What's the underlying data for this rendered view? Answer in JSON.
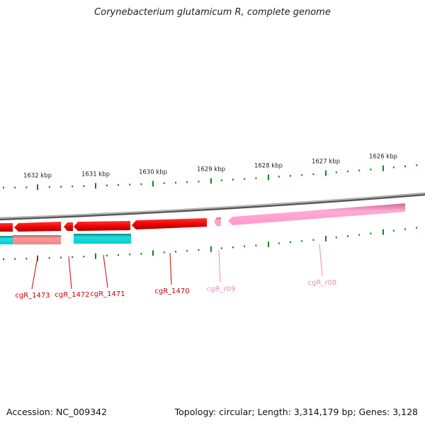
{
  "title": "Corynebacterium glutamicum R, complete genome",
  "footer": {
    "accession": "Accession: NC_009342",
    "summary": "Topology: circular; Length: 3,314,179 bp; Genes: 3,128"
  },
  "ruler": {
    "labels": [
      "1632 kbp",
      "1631 kbp",
      "1630 kbp",
      "1629 kbp",
      "1628 kbp",
      "1627 kbp",
      "1626 kbp"
    ]
  },
  "genes": [
    {
      "label": "cgR_1473",
      "color": "#cc0000"
    },
    {
      "label": "cgR_1472",
      "color": "#cc0000"
    },
    {
      "label": "cgR_1471",
      "color": "#cc0000"
    },
    {
      "label": "cgR_1470",
      "color": "#cc0000"
    },
    {
      "label": "cgR_r09",
      "color": "#ee88bb"
    },
    {
      "label": "cgR_r08",
      "color": "#ee88bb"
    }
  ],
  "colors": {
    "cds": "#ff0000",
    "rna": "#ff99cc",
    "cds_secondary": "#00cccc",
    "cds_secondary_faded": "#ee8888",
    "backbone": "#888888",
    "ticks": "#118811"
  }
}
